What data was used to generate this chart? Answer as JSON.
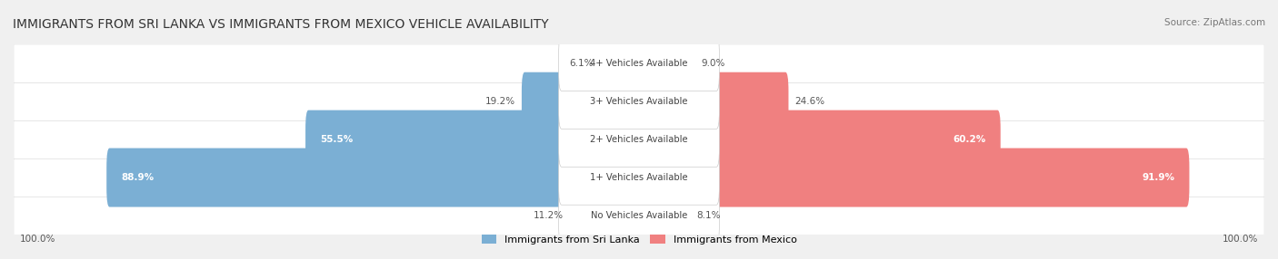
{
  "title": "IMMIGRANTS FROM SRI LANKA VS IMMIGRANTS FROM MEXICO VEHICLE AVAILABILITY",
  "source": "Source: ZipAtlas.com",
  "categories": [
    "No Vehicles Available",
    "1+ Vehicles Available",
    "2+ Vehicles Available",
    "3+ Vehicles Available",
    "4+ Vehicles Available"
  ],
  "sri_lanka_values": [
    11.2,
    88.9,
    55.5,
    19.2,
    6.1
  ],
  "mexico_values": [
    8.1,
    91.9,
    60.2,
    24.6,
    9.0
  ],
  "sri_lanka_color": "#7bafd4",
  "mexico_color": "#f08080",
  "sri_lanka_light": "#b8d4ea",
  "mexico_light": "#f8c0c0",
  "bar_height": 0.55,
  "background_color": "#f0f0f0",
  "row_bg_color": "#f5f5f5",
  "label_fontsize": 8.5,
  "title_fontsize": 10,
  "footer_fontsize": 8.5
}
